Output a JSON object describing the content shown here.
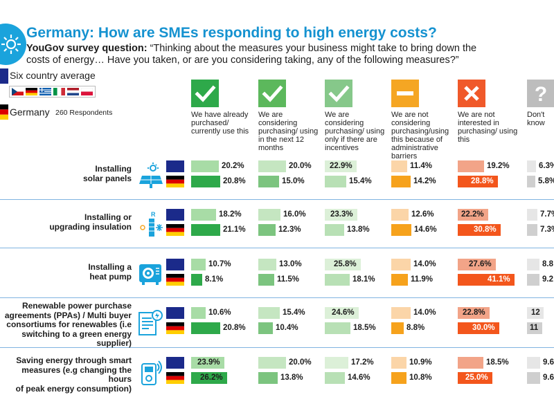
{
  "title": "Germany: How are SMEs responding to high energy costs?",
  "question": {
    "prefix": "YouGov survey question:",
    "line1": " “Thinking about the measures your business might take to bring down the",
    "line2": "costs of energy… Have you taken, or are you considering taking, any of the following measures?”"
  },
  "legend": {
    "six_country": "Six country average",
    "germany": "Germany",
    "respondents": "260 Respondents"
  },
  "columns": [
    {
      "label": "We have already purchased/ currently use this",
      "icon": "check-icon",
      "icon_color": "#2ea94a"
    },
    {
      "label": "We are considering purchasing/ using in the next 12 months",
      "icon": "check-icon",
      "icon_color": "#5cb85c"
    },
    {
      "label": "We are considering purchasing/ using only if there are incentives",
      "icon": "check-icon",
      "icon_color": "#86c88a"
    },
    {
      "label": "We are not considering purchasing/using this because of administrative barriers",
      "icon": "minus-icon",
      "icon_color": "#f5a623"
    },
    {
      "label": "We are not interested in purchasing/ using this",
      "icon": "cross-icon",
      "icon_color": "#f0592a"
    },
    {
      "label": "Don't know",
      "icon": "question-icon",
      "icon_color": "#bdbdbd"
    }
  ],
  "colors": {
    "accent": "#1592d0",
    "eu_flag": "#1b2a8a",
    "six_country_bars": [
      "#a8dca6",
      "#c5e6c1",
      "#dcf0d8",
      "#fbd5a8",
      "#f2a488",
      "#e6e6e6"
    ],
    "germany_bars": [
      "#2ea94a",
      "#7cc47f",
      "#b8e0b5",
      "#f6a21c",
      "#f3561c",
      "#cfcfcf"
    ]
  },
  "chart_data": {
    "type": "bar",
    "unit": "%",
    "categories": [
      "Installing solar panels",
      "Installing or upgrading insulation",
      "Installing a heat pump",
      "Renewable power purchase agreements (PPAs) / Multi buyer consortiums for renewables (i.e switching to a green energy supplier)",
      "Saving energy through smart measures (e.g changing the hours of peak energy consumption)"
    ],
    "series": [
      {
        "name": "Six country average",
        "values": [
          [
            20.2,
            20.0,
            22.9,
            11.4,
            19.2,
            6.3
          ],
          [
            18.2,
            16.0,
            23.3,
            12.6,
            22.2,
            7.7
          ],
          [
            10.7,
            13.0,
            25.8,
            14.0,
            27.6,
            8.8
          ],
          [
            10.6,
            15.4,
            24.6,
            14.0,
            22.8,
            12
          ],
          [
            23.9,
            20.0,
            17.2,
            10.9,
            18.5,
            9.6
          ]
        ]
      },
      {
        "name": "Germany",
        "values": [
          [
            20.8,
            15.0,
            15.4,
            14.2,
            28.8,
            5.8
          ],
          [
            21.1,
            12.3,
            13.8,
            14.6,
            30.8,
            7.3
          ],
          [
            8.1,
            11.5,
            18.1,
            11.9,
            41.1,
            9.2
          ],
          [
            20.8,
            10.4,
            18.5,
            8.8,
            30.0,
            11
          ],
          [
            26.2,
            13.8,
            14.6,
            10.8,
            25.0,
            9.6
          ]
        ]
      }
    ],
    "value_labels": {
      "Six country average": [
        [
          "20.2%",
          "20.0%",
          "22.9%",
          "11.4%",
          "19.2%",
          "6.3%"
        ],
        [
          "18.2%",
          "16.0%",
          "23.3%",
          "12.6%",
          "22.2%",
          "7.7%"
        ],
        [
          "10.7%",
          "13.0%",
          "25.8%",
          "14.0%",
          "27.6%",
          "8.8"
        ],
        [
          "10.6%",
          "15.4%",
          "24.6%",
          "14.0%",
          "22.8%",
          "12"
        ],
        [
          "23.9%",
          "20.0%",
          "17.2%",
          "10.9%",
          "18.5%",
          "9.6"
        ]
      ],
      "Germany": [
        [
          "20.8%",
          "15.0%",
          "15.4%",
          "14.2%",
          "28.8%",
          "5.8%"
        ],
        [
          "21.1%",
          "12.3%",
          "13.8%",
          "14.6%",
          "30.8%",
          "7.3%"
        ],
        [
          "8.1%",
          "11.5%",
          "18.1%",
          "11.9%",
          "41.1%",
          "9.2"
        ],
        [
          "20.8%",
          "10.4%",
          "18.5%",
          "8.8%",
          "30.0%",
          "11"
        ],
        [
          "26.2%",
          "13.8%",
          "14.6%",
          "10.8%",
          "25.0%",
          "9.6"
        ]
      ]
    },
    "row_icons": [
      "solar-panel-icon",
      "insulation-icon",
      "heat-pump-icon",
      "contract-icon",
      "smart-plug-icon"
    ],
    "legend": [
      "Six country average",
      "Germany"
    ],
    "grid": false
  }
}
